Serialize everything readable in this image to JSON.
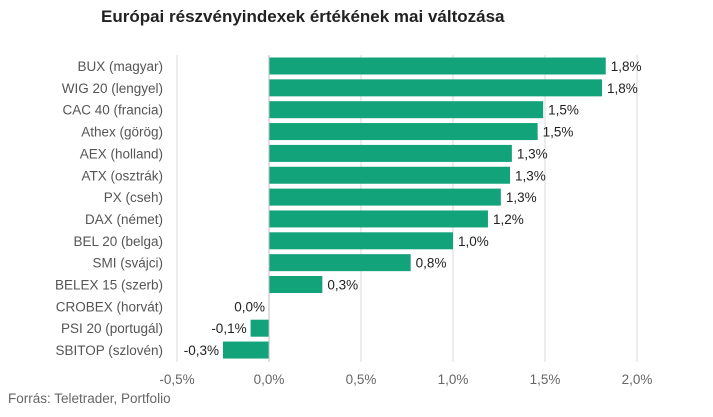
{
  "chart_data": {
    "type": "bar",
    "orientation": "horizontal",
    "title": "Európai részvényindexek értékének mai változása",
    "source": "Forrás: Teletrader, Portfolio",
    "categories": [
      "BUX (magyar)",
      "WIG 20 (lengyel)",
      "CAC 40 (francia)",
      "Athex (görög)",
      "AEX (holland)",
      "ATX (osztrák)",
      "PX (cseh)",
      "DAX (német)",
      "BEL 20 (belga)",
      "SMI (svájci)",
      "BELEX 15 (szerb)",
      "CROBEX (horvát)",
      "PSI 20 (portugál)",
      "SBITOP (szlovén)"
    ],
    "values": [
      1.83,
      1.81,
      1.49,
      1.46,
      1.32,
      1.31,
      1.26,
      1.19,
      1.0,
      0.77,
      0.29,
      0.0,
      -0.1,
      -0.25
    ],
    "value_labels": [
      "1,8%",
      "1,8%",
      "1,5%",
      "1,5%",
      "1,3%",
      "1,3%",
      "1,3%",
      "1,2%",
      "1,0%",
      "0,8%",
      "0,3%",
      "0,0%",
      "-0,1%",
      "-0,3%"
    ],
    "xlim": [
      -0.5,
      2.0
    ],
    "xticks": [
      -0.5,
      0.0,
      0.5,
      1.0,
      1.5,
      2.0
    ],
    "xtick_labels": [
      "-0,5%",
      "0,0%",
      "0,5%",
      "1,0%",
      "1,5%",
      "2,0%"
    ],
    "grid": "vertical",
    "legend": "none",
    "bar_color": "#12a37a",
    "grid_color": "#d9d9d9",
    "zero_line_color": "#bfbfbf"
  }
}
